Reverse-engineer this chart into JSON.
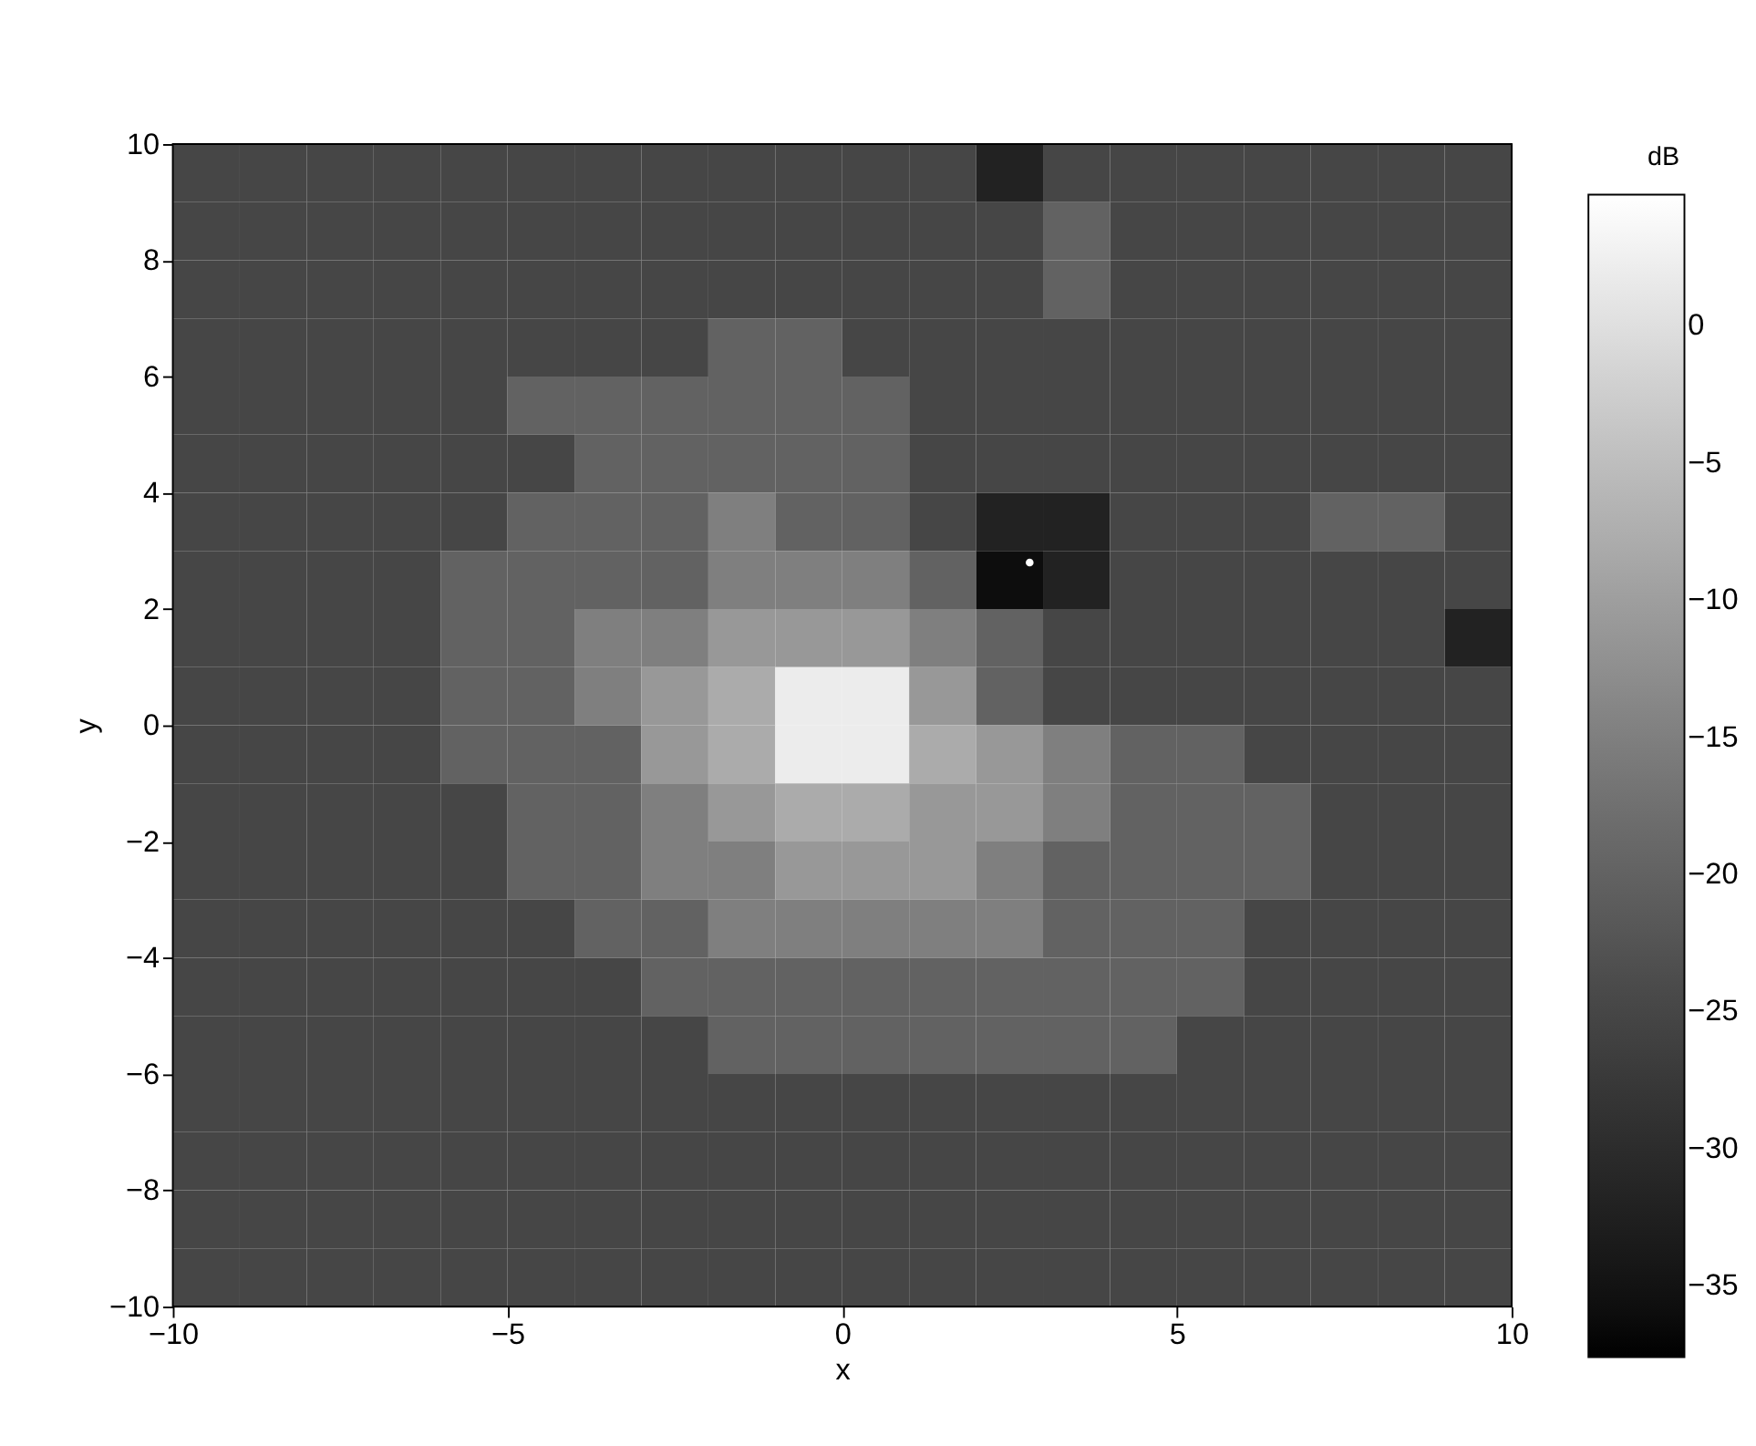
{
  "chart_data": {
    "type": "heatmap",
    "xlabel": "x",
    "ylabel": "y",
    "clabel": "dB",
    "x": [
      -9.5,
      -8.5,
      -7.5,
      -6.5,
      -5.5,
      -4.5,
      -3.5,
      -2.5,
      -1.5,
      -0.5,
      0.5,
      1.5,
      2.5,
      3.5,
      4.5,
      5.5,
      6.5,
      7.5,
      8.5,
      9.5
    ],
    "y": [
      9.5,
      8.5,
      7.5,
      6.5,
      5.5,
      4.5,
      3.5,
      2.5,
      1.5,
      0.5,
      -0.5,
      -1.5,
      -2.5,
      -3.5,
      -4.5,
      -5.5,
      -6.5,
      -7.5,
      -8.5,
      -9.5
    ],
    "cells": [
      [
        -25,
        -25,
        -25,
        -25,
        -25,
        -25,
        -25,
        -25,
        -25,
        -25,
        -25,
        -25,
        -32,
        -25,
        -25,
        -25,
        -25,
        -25,
        -25,
        -25
      ],
      [
        -25,
        -25,
        -25,
        -25,
        -25,
        -25,
        -25,
        -25,
        -25,
        -25,
        -25,
        -25,
        -25,
        -20,
        -25,
        -25,
        -25,
        -25,
        -25,
        -25
      ],
      [
        -25,
        -25,
        -25,
        -25,
        -25,
        -25,
        -25,
        -25,
        -25,
        -25,
        -25,
        -25,
        -25,
        -20,
        -25,
        -25,
        -25,
        -25,
        -25,
        -25
      ],
      [
        -25,
        -25,
        -25,
        -25,
        -25,
        -25,
        -25,
        -25,
        -20,
        -20,
        -25,
        -25,
        -25,
        -25,
        -25,
        -25,
        -25,
        -25,
        -25,
        -25
      ],
      [
        -25,
        -25,
        -25,
        -25,
        -25,
        -20,
        -20,
        -20,
        -20,
        -20,
        -20,
        -25,
        -25,
        -25,
        -25,
        -25,
        -25,
        -25,
        -25,
        -25
      ],
      [
        -25,
        -25,
        -25,
        -25,
        -25,
        -25,
        -20,
        -20,
        -20,
        -20,
        -20,
        -25,
        -25,
        -25,
        -25,
        -25,
        -25,
        -25,
        -25,
        -25
      ],
      [
        -25,
        -25,
        -25,
        -25,
        -25,
        -20,
        -20,
        -20,
        -15,
        -20,
        -20,
        -25,
        -32,
        -32,
        -25,
        -25,
        -25,
        -20,
        -20,
        -25
      ],
      [
        -25,
        -25,
        -25,
        -25,
        -20,
        -20,
        -20,
        -20,
        -15,
        -15,
        -15,
        -20,
        -36,
        -32,
        -25,
        -25,
        -25,
        -25,
        -25,
        -25
      ],
      [
        -25,
        -25,
        -25,
        -25,
        -20,
        -20,
        -15,
        -15,
        -11,
        -11,
        -11,
        -15,
        -20,
        -25,
        -25,
        -25,
        -25,
        -25,
        -25,
        -32
      ],
      [
        -25,
        -25,
        -25,
        -25,
        -20,
        -20,
        -15,
        -11,
        -8,
        2,
        2,
        -11,
        -20,
        -25,
        -25,
        -25,
        -25,
        -25,
        -25,
        -25
      ],
      [
        -25,
        -25,
        -25,
        -25,
        -20,
        -20,
        -20,
        -11,
        -8,
        2,
        2,
        -8,
        -11,
        -15,
        -20,
        -20,
        -25,
        -25,
        -25,
        -25
      ],
      [
        -25,
        -25,
        -25,
        -25,
        -25,
        -20,
        -20,
        -15,
        -11,
        -8,
        -8,
        -11,
        -11,
        -15,
        -20,
        -20,
        -20,
        -25,
        -25,
        -25
      ],
      [
        -25,
        -25,
        -25,
        -25,
        -25,
        -20,
        -20,
        -15,
        -15,
        -11,
        -11,
        -11,
        -15,
        -20,
        -20,
        -20,
        -20,
        -25,
        -25,
        -25
      ],
      [
        -25,
        -25,
        -25,
        -25,
        -25,
        -25,
        -20,
        -20,
        -15,
        -15,
        -15,
        -15,
        -15,
        -20,
        -20,
        -20,
        -25,
        -25,
        -25,
        -25
      ],
      [
        -25,
        -25,
        -25,
        -25,
        -25,
        -25,
        -25,
        -20,
        -20,
        -20,
        -20,
        -20,
        -20,
        -20,
        -20,
        -20,
        -25,
        -25,
        -25,
        -25
      ],
      [
        -25,
        -25,
        -25,
        -25,
        -25,
        -25,
        -25,
        -25,
        -20,
        -20,
        -20,
        -20,
        -20,
        -20,
        -20,
        -25,
        -25,
        -25,
        -25,
        -25
      ],
      [
        -25,
        -25,
        -25,
        -25,
        -25,
        -25,
        -25,
        -25,
        -25,
        -25,
        -25,
        -25,
        -25,
        -25,
        -25,
        -25,
        -25,
        -25,
        -25,
        -25
      ],
      [
        -25,
        -25,
        -25,
        -25,
        -25,
        -25,
        -25,
        -25,
        -25,
        -25,
        -25,
        -25,
        -25,
        -25,
        -25,
        -25,
        -25,
        -25,
        -25,
        -25
      ],
      [
        -25,
        -25,
        -25,
        -25,
        -25,
        -25,
        -25,
        -25,
        -25,
        -25,
        -25,
        -25,
        -25,
        -25,
        -25,
        -25,
        -25,
        -25,
        -25,
        -25
      ],
      [
        -25,
        -25,
        -25,
        -25,
        -25,
        -25,
        -25,
        -25,
        -25,
        -25,
        -25,
        -25,
        -25,
        -25,
        -25,
        -25,
        -25,
        -25,
        -25,
        -25
      ]
    ],
    "series": [
      {
        "type": "scatter",
        "x": [
          2.8
        ],
        "values": [
          2.8
        ],
        "color": "#ffffff"
      }
    ],
    "xlim": [
      -10,
      10
    ],
    "ylim": [
      -10,
      10
    ],
    "xticks": [
      -10,
      -5,
      0,
      5,
      10
    ],
    "yticks": [
      -10,
      -8,
      -6,
      -4,
      -2,
      0,
      2,
      4,
      6,
      8,
      10
    ],
    "clim": [
      -37.6,
      4.8
    ],
    "cticks": [
      -35,
      -30,
      -25,
      -20,
      -15,
      -10,
      -5,
      0
    ]
  }
}
